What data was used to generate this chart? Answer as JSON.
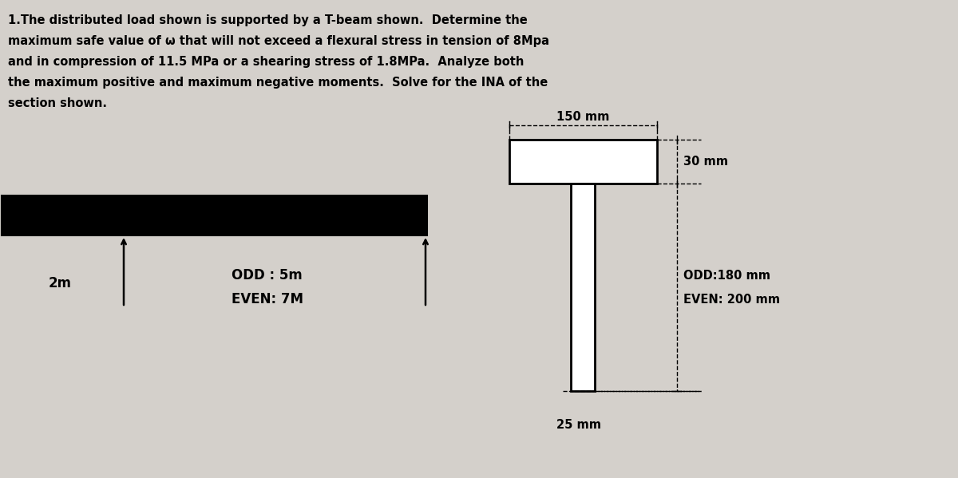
{
  "bg_color": "#d4d0cb",
  "title_lines": [
    "1.The distributed load shown is supported by a T-beam shown.  Determine the",
    "maximum safe value of ω that will not exceed a flexural stress in tension of 8Mpa",
    "and in compression of 11.5 MPa or a shearing stress of 1.8MPa.  Analyze both",
    "the maximum positive and maximum negative moments.  Solve for the INA of the",
    "section shown."
  ],
  "label_2m": "2m",
  "label_odd_span": "ODD : 5m",
  "label_even_span": "EVEN: 7M",
  "label_150mm": "150 mm",
  "label_30mm": "30 mm",
  "label_25mm": "25 mm",
  "label_odd_web": "ODD:180 mm",
  "label_even_web": "EVEN: 200 mm"
}
